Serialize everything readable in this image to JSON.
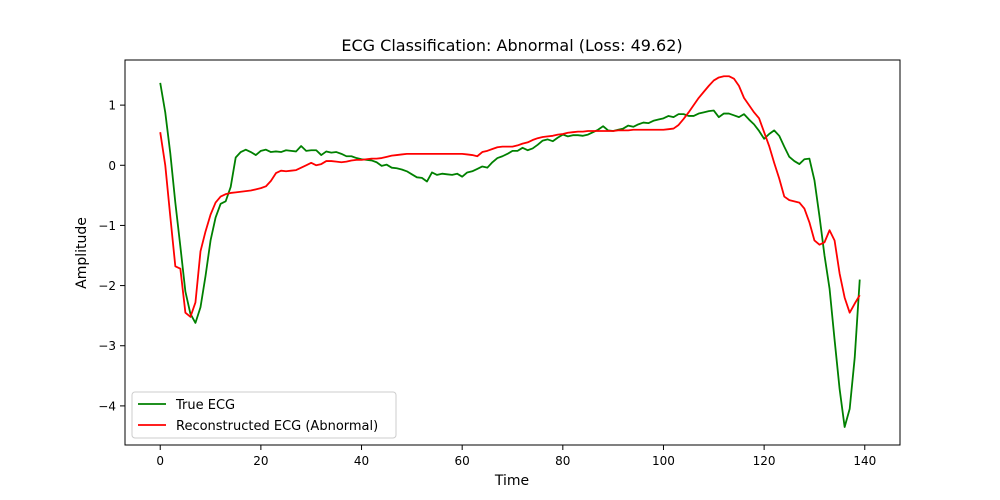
{
  "chart_data": {
    "type": "line",
    "title": "ECG Classification: Abnormal (Loss: 49.62)",
    "xlabel": "Time",
    "ylabel": "Amplitude",
    "xlim": [
      -7,
      147
    ],
    "ylim": [
      -4.65,
      1.75
    ],
    "x_ticks": [
      0,
      20,
      40,
      60,
      80,
      100,
      120,
      140
    ],
    "y_ticks": [
      -4,
      -3,
      -2,
      -1,
      0,
      1
    ],
    "grid": false,
    "legend_position": "lower-left",
    "series": [
      {
        "name": "True ECG",
        "color": "#008000",
        "x": [
          0,
          1,
          2,
          3,
          4,
          5,
          6,
          7,
          8,
          9,
          10,
          11,
          12,
          13,
          14,
          15,
          16,
          17,
          18,
          19,
          20,
          21,
          22,
          23,
          24,
          25,
          26,
          27,
          28,
          29,
          30,
          31,
          32,
          33,
          34,
          35,
          36,
          37,
          38,
          39,
          40,
          41,
          42,
          43,
          44,
          45,
          46,
          47,
          48,
          49,
          50,
          51,
          52,
          53,
          54,
          55,
          56,
          57,
          58,
          59,
          60,
          61,
          62,
          63,
          64,
          65,
          66,
          67,
          68,
          69,
          70,
          71,
          72,
          73,
          74,
          75,
          76,
          77,
          78,
          79,
          80,
          81,
          82,
          83,
          84,
          85,
          86,
          87,
          88,
          89,
          90,
          91,
          92,
          93,
          94,
          95,
          96,
          97,
          98,
          99,
          100,
          101,
          102,
          103,
          104,
          105,
          106,
          107,
          108,
          109,
          110,
          111,
          112,
          113,
          114,
          115,
          116,
          117,
          118,
          119,
          120,
          121,
          122,
          123,
          124,
          125,
          126,
          127,
          128,
          129,
          130,
          131,
          132,
          133,
          134,
          135,
          136,
          137,
          138,
          139
        ],
        "y": [
          1.37,
          0.88,
          0.2,
          -0.62,
          -1.35,
          -2.1,
          -2.47,
          -2.62,
          -2.36,
          -1.84,
          -1.25,
          -0.87,
          -0.64,
          -0.6,
          -0.36,
          0.13,
          0.22,
          0.26,
          0.22,
          0.17,
          0.24,
          0.26,
          0.22,
          0.23,
          0.22,
          0.25,
          0.24,
          0.23,
          0.32,
          0.24,
          0.25,
          0.25,
          0.17,
          0.23,
          0.21,
          0.22,
          0.19,
          0.15,
          0.15,
          0.12,
          0.1,
          0.09,
          0.08,
          0.05,
          -0.01,
          0.01,
          -0.04,
          -0.05,
          -0.07,
          -0.1,
          -0.15,
          -0.2,
          -0.21,
          -0.27,
          -0.12,
          -0.16,
          -0.14,
          -0.15,
          -0.16,
          -0.14,
          -0.19,
          -0.12,
          -0.1,
          -0.06,
          -0.02,
          -0.04,
          0.05,
          0.12,
          0.15,
          0.19,
          0.24,
          0.24,
          0.29,
          0.25,
          0.28,
          0.34,
          0.41,
          0.43,
          0.4,
          0.46,
          0.51,
          0.48,
          0.5,
          0.5,
          0.49,
          0.51,
          0.55,
          0.59,
          0.65,
          0.58,
          0.57,
          0.59,
          0.61,
          0.66,
          0.64,
          0.68,
          0.71,
          0.7,
          0.74,
          0.76,
          0.78,
          0.82,
          0.8,
          0.85,
          0.85,
          0.82,
          0.82,
          0.86,
          0.88,
          0.9,
          0.91,
          0.8,
          0.86,
          0.86,
          0.83,
          0.8,
          0.85,
          0.76,
          0.68,
          0.57,
          0.44,
          0.52,
          0.58,
          0.49,
          0.31,
          0.14,
          0.07,
          0.02,
          0.1,
          0.11,
          -0.25,
          -0.85,
          -1.5,
          -2.05,
          -2.9,
          -3.72,
          -4.35,
          -4.05,
          -3.2,
          -1.9
        ]
      },
      {
        "name": "Reconstructed ECG (Abnormal)",
        "color": "#ff0000",
        "x": [
          0,
          1,
          2,
          3,
          4,
          5,
          6,
          7,
          8,
          9,
          10,
          11,
          12,
          13,
          14,
          15,
          16,
          17,
          18,
          19,
          20,
          21,
          22,
          23,
          24,
          25,
          26,
          27,
          28,
          29,
          30,
          31,
          32,
          33,
          34,
          35,
          36,
          37,
          38,
          39,
          40,
          41,
          42,
          43,
          44,
          45,
          46,
          47,
          48,
          49,
          50,
          51,
          52,
          53,
          54,
          55,
          56,
          57,
          58,
          59,
          60,
          61,
          62,
          63,
          64,
          65,
          66,
          67,
          68,
          69,
          70,
          71,
          72,
          73,
          74,
          75,
          76,
          77,
          78,
          79,
          80,
          81,
          82,
          83,
          84,
          85,
          86,
          87,
          88,
          89,
          90,
          91,
          92,
          93,
          94,
          95,
          96,
          97,
          98,
          99,
          100,
          101,
          102,
          103,
          104,
          105,
          106,
          107,
          108,
          109,
          110,
          111,
          112,
          113,
          114,
          115,
          116,
          117,
          118,
          119,
          120,
          121,
          122,
          123,
          124,
          125,
          126,
          127,
          128,
          129,
          130,
          131,
          132,
          133,
          134,
          135,
          136,
          137,
          138,
          139
        ],
        "y": [
          0.55,
          0.0,
          -0.85,
          -1.68,
          -1.72,
          -2.45,
          -2.52,
          -2.28,
          -1.43,
          -1.1,
          -0.82,
          -0.62,
          -0.52,
          -0.48,
          -0.46,
          -0.45,
          -0.44,
          -0.43,
          -0.42,
          -0.4,
          -0.38,
          -0.35,
          -0.26,
          -0.13,
          -0.09,
          -0.1,
          -0.09,
          -0.08,
          -0.04,
          0.0,
          0.04,
          0.0,
          0.02,
          0.07,
          0.07,
          0.06,
          0.05,
          0.06,
          0.08,
          0.09,
          0.09,
          0.1,
          0.11,
          0.11,
          0.12,
          0.14,
          0.16,
          0.17,
          0.18,
          0.19,
          0.19,
          0.19,
          0.19,
          0.19,
          0.19,
          0.19,
          0.19,
          0.19,
          0.19,
          0.19,
          0.19,
          0.18,
          0.17,
          0.15,
          0.22,
          0.24,
          0.27,
          0.3,
          0.31,
          0.31,
          0.31,
          0.33,
          0.36,
          0.38,
          0.42,
          0.45,
          0.47,
          0.48,
          0.49,
          0.51,
          0.52,
          0.54,
          0.55,
          0.56,
          0.56,
          0.57,
          0.57,
          0.57,
          0.57,
          0.57,
          0.57,
          0.58,
          0.58,
          0.58,
          0.59,
          0.59,
          0.59,
          0.59,
          0.59,
          0.59,
          0.59,
          0.6,
          0.61,
          0.67,
          0.77,
          0.88,
          1.0,
          1.12,
          1.22,
          1.32,
          1.41,
          1.46,
          1.48,
          1.48,
          1.44,
          1.32,
          1.12,
          1.0,
          0.88,
          0.78,
          0.55,
          0.32,
          0.04,
          -0.22,
          -0.52,
          -0.58,
          -0.6,
          -0.62,
          -0.72,
          -0.95,
          -1.25,
          -1.32,
          -1.28,
          -1.08,
          -1.25,
          -1.8,
          -2.2,
          -2.45,
          -2.3,
          -2.16
        ]
      }
    ]
  }
}
